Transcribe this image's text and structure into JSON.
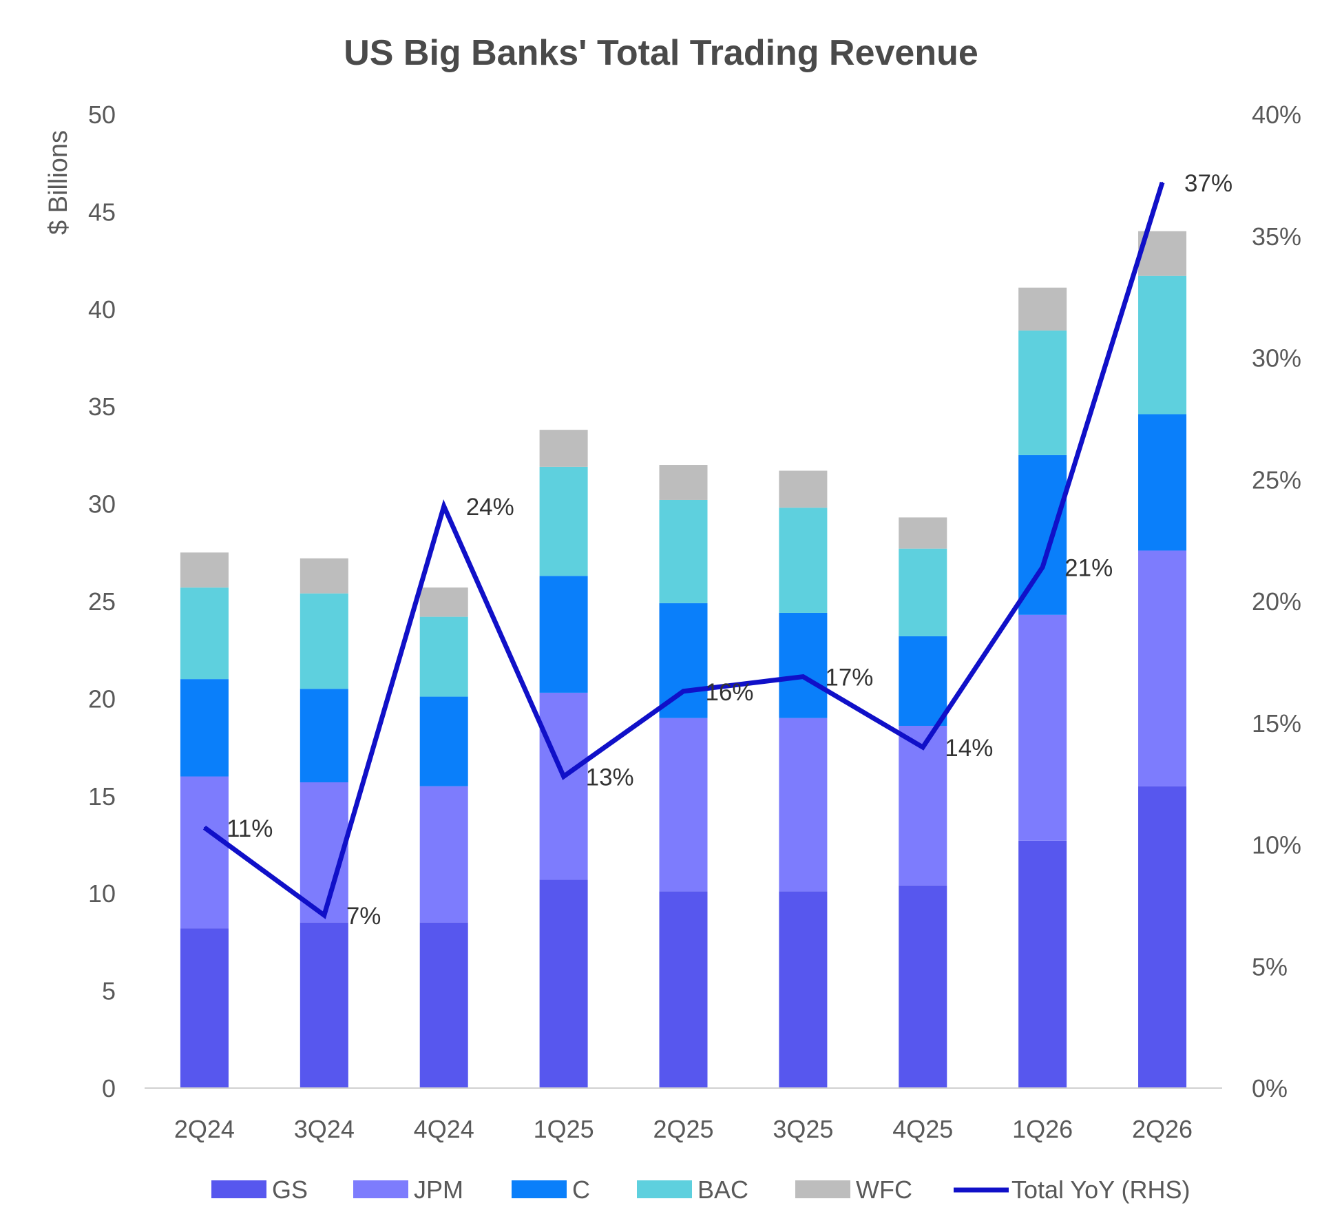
{
  "chart_data": {
    "type": "bar",
    "stacked": true,
    "title": "US Big Banks' Total Trading Revenue",
    "ylabel": "$ Billions",
    "y2label": "",
    "categories": [
      "2Q24",
      "3Q24",
      "4Q24",
      "1Q25",
      "2Q25",
      "3Q25",
      "4Q25",
      "1Q26",
      "2Q26"
    ],
    "ylim": [
      0,
      50
    ],
    "yticks": [
      "0",
      "5",
      "10",
      "15",
      "20",
      "25",
      "30",
      "35",
      "40",
      "45",
      "50"
    ],
    "y2lim": [
      0,
      0.4
    ],
    "y2ticks": [
      "0%",
      "5%",
      "10%",
      "15%",
      "20%",
      "25%",
      "30%",
      "35%",
      "40%"
    ],
    "series": [
      {
        "name": "GS",
        "color": "#5757ee",
        "values": [
          8.2,
          8.5,
          8.5,
          10.7,
          10.1,
          10.1,
          10.4,
          12.7,
          15.5
        ]
      },
      {
        "name": "JPM",
        "color": "#7d7cfd",
        "values": [
          7.8,
          7.2,
          7.0,
          9.6,
          8.9,
          8.9,
          8.2,
          11.6,
          12.1
        ]
      },
      {
        "name": "C",
        "color": "#0a7ffa",
        "values": [
          5.0,
          4.8,
          4.6,
          6.0,
          5.9,
          5.4,
          4.6,
          8.2,
          7.0
        ]
      },
      {
        "name": "BAC",
        "color": "#5ed0de",
        "values": [
          4.7,
          4.9,
          4.1,
          5.6,
          5.3,
          5.4,
          4.5,
          6.4,
          7.1
        ]
      },
      {
        "name": "WFC",
        "color": "#bdbdbd",
        "values": [
          1.8,
          1.8,
          1.5,
          1.9,
          1.8,
          1.9,
          1.6,
          2.2,
          2.3
        ]
      }
    ],
    "line": {
      "name": "Total YoY (RHS)",
      "color": "#1010c8",
      "values": [
        0.107,
        0.071,
        0.239,
        0.128,
        0.163,
        0.169,
        0.14,
        0.214,
        0.372
      ],
      "labels": [
        "11%",
        "7%",
        "24%",
        "13%",
        "16%",
        "17%",
        "14%",
        "21%",
        "37%"
      ]
    },
    "grid": false,
    "legend": "bottom"
  }
}
